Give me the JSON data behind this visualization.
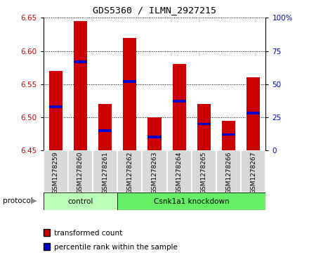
{
  "title": "GDS5360 / ILMN_2927215",
  "samples": [
    "GSM1278259",
    "GSM1278260",
    "GSM1278261",
    "GSM1278262",
    "GSM1278263",
    "GSM1278264",
    "GSM1278265",
    "GSM1278266",
    "GSM1278267"
  ],
  "red_values": [
    6.57,
    6.645,
    6.52,
    6.62,
    6.5,
    6.58,
    6.52,
    6.495,
    6.56
  ],
  "blue_values_pct": [
    33,
    67,
    15,
    52,
    10,
    37,
    20,
    12,
    28
  ],
  "ylim": [
    6.45,
    6.65
  ],
  "yticks": [
    6.45,
    6.5,
    6.55,
    6.6,
    6.65
  ],
  "y2lim": [
    0,
    100
  ],
  "y2ticks": [
    0,
    25,
    50,
    75,
    100
  ],
  "y2tick_labels": [
    "0",
    "25",
    "50",
    "75",
    "100%"
  ],
  "bar_width": 0.55,
  "red_color": "#cc0000",
  "blue_color": "#0000cc",
  "bg_color": "#d8d8d8",
  "control_light": "#bbffbb",
  "knockdown_dark": "#66ee66",
  "white": "#ffffff"
}
